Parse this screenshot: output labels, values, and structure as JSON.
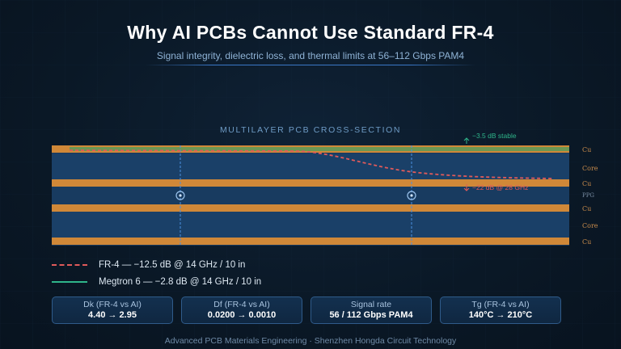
{
  "header": {
    "title": "Why AI PCBs Cannot Use Standard FR-4",
    "subtitle": "Signal integrity, dielectric loss, and thermal limits at 56–112 Gbps PAM4"
  },
  "cross_section": {
    "label": "MULTILAYER PCB CROSS-SECTION",
    "layers": [
      "Cu",
      "Core",
      "Cu",
      "PPG",
      "Cu",
      "Core",
      "Cu"
    ],
    "annotations": {
      "stable": "−3.5 dB stable",
      "loss": "−22 dB @ 28 GHz"
    }
  },
  "legend": {
    "fr4": "FR-4 — −12.5 dB @ 14 GHz / 10 in",
    "megtron": "Megtron 6 — −2.8 dB @ 14 GHz / 10 in"
  },
  "cards": [
    {
      "label": "Dk (FR-4 vs AI)",
      "value": "4.40 → 2.95"
    },
    {
      "label": "Df (FR-4 vs AI)",
      "value": "0.0200 → 0.0010"
    },
    {
      "label": "Signal rate",
      "value": "56 / 112 Gbps PAM4"
    },
    {
      "label": "Tg (FR-4 vs AI)",
      "value": "140°C → 210°C"
    }
  ],
  "footer": "Advanced PCB Materials Engineering · Shenzhen Hongda Circuit Technology",
  "colors": {
    "copper": "#d08838",
    "core": "#17395e",
    "fr4_line": "#e05a5a",
    "megtron_line": "#2fb58a",
    "accent": "#3a78c8"
  }
}
